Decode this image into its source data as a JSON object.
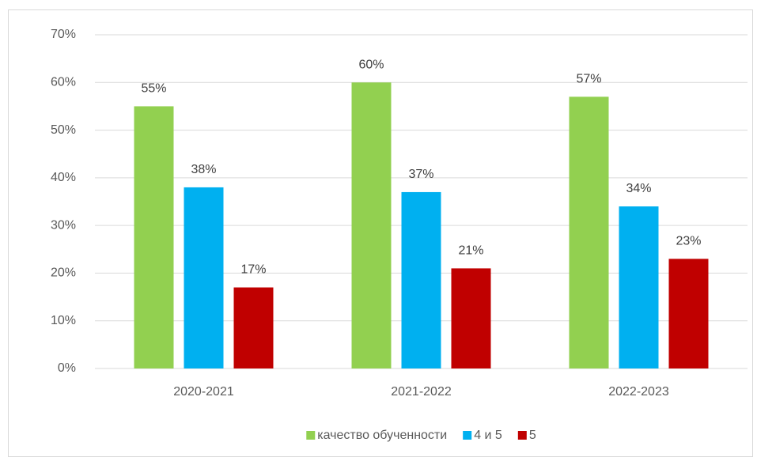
{
  "chart_data": {
    "type": "bar",
    "categories": [
      "2020-2021",
      "2021-2022",
      "2022-2023"
    ],
    "series": [
      {
        "name": "качество обученности",
        "color": "#92d050",
        "values": [
          55,
          60,
          57
        ],
        "value_labels": [
          "55%",
          "60%",
          "57%"
        ]
      },
      {
        "name": "4 и 5",
        "color": "#00b0f0",
        "values": [
          38,
          37,
          34
        ],
        "value_labels": [
          "38%",
          "37%",
          "34%"
        ]
      },
      {
        "name": "5",
        "color": "#c00000",
        "values": [
          17,
          21,
          23
        ],
        "value_labels": [
          "17%",
          "21%",
          "23%"
        ]
      }
    ],
    "ylim": [
      0,
      70
    ],
    "yticks": [
      {
        "value": 0,
        "label": "0%"
      },
      {
        "value": 10,
        "label": "10%"
      },
      {
        "value": 20,
        "label": "20%"
      },
      {
        "value": 30,
        "label": "30%"
      },
      {
        "value": 40,
        "label": "40%"
      },
      {
        "value": 50,
        "label": "50%"
      },
      {
        "value": 60,
        "label": "60%"
      },
      {
        "value": 70,
        "label": "70%"
      }
    ],
    "grid": true,
    "legend": "bottom"
  }
}
